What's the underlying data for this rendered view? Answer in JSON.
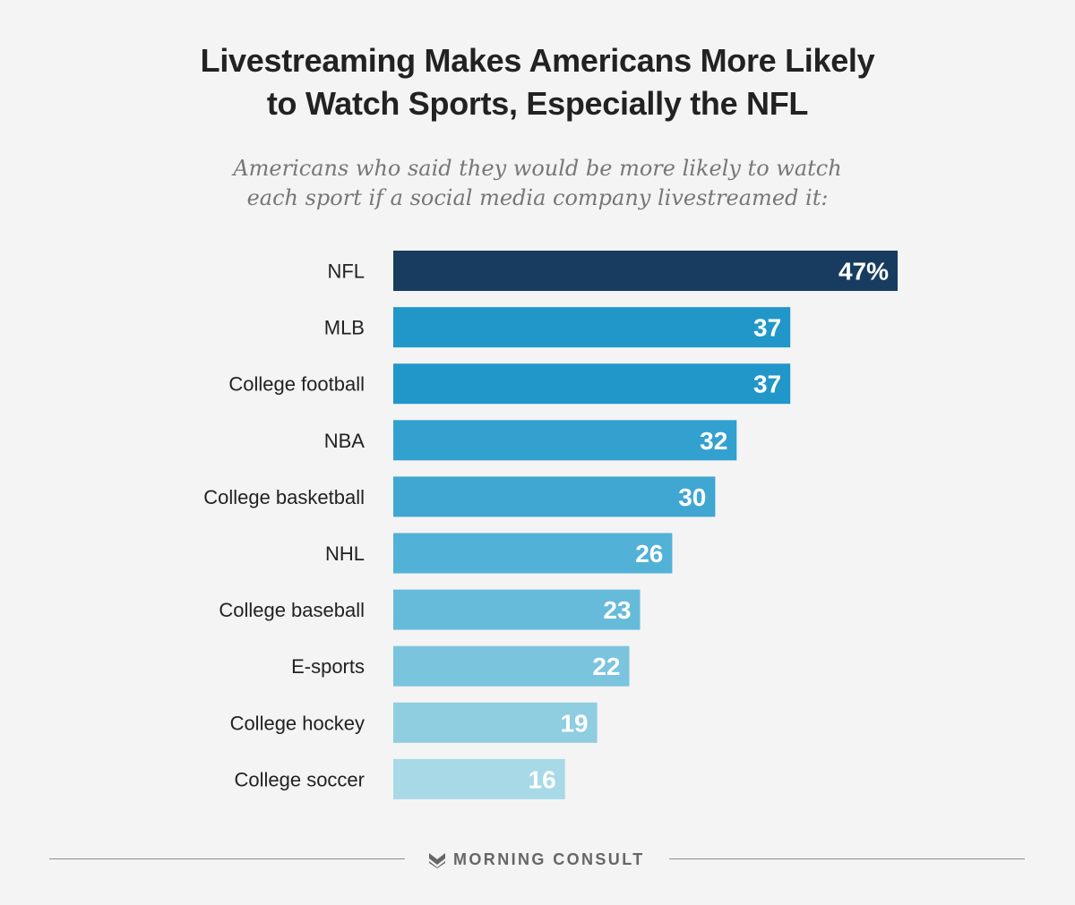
{
  "header": {
    "title_line1": "Livestreaming Makes Americans More Likely",
    "title_line2": "to Watch Sports, Especially the NFL",
    "subtitle_line1": "Americans who said they would be more likely to watch",
    "subtitle_line2": "each sport if a social media company livestreamed it:"
  },
  "chart_data": {
    "type": "bar",
    "orientation": "horizontal",
    "title": "Livestreaming Makes Americans More Likely to Watch Sports, Especially the NFL",
    "subtitle": "Americans who said they would be more likely to watch each sport if a social media company livestreamed it:",
    "categories": [
      "NFL",
      "MLB",
      "College football",
      "NBA",
      "College basketball",
      "NHL",
      "College baseball",
      "E-sports",
      "College hockey",
      "College soccer"
    ],
    "values": [
      47,
      37,
      37,
      32,
      30,
      26,
      23,
      22,
      19,
      16
    ],
    "value_labels": [
      "47%",
      "37",
      "37",
      "32",
      "30",
      "26",
      "23",
      "22",
      "19",
      "16"
    ],
    "colors": [
      "#173c5f",
      "#2197c9",
      "#2197c9",
      "#33a1cf",
      "#3fa7d2",
      "#52b1d6",
      "#67bbda",
      "#7ac4de",
      "#8fcde0",
      "#a7d9e6"
    ],
    "unit": "%",
    "xlim": [
      0,
      47
    ],
    "grid": false,
    "legend": "none"
  },
  "footer": {
    "brand": "MORNING CONSULT",
    "logo_icon": "morning-consult-chevron-icon"
  }
}
